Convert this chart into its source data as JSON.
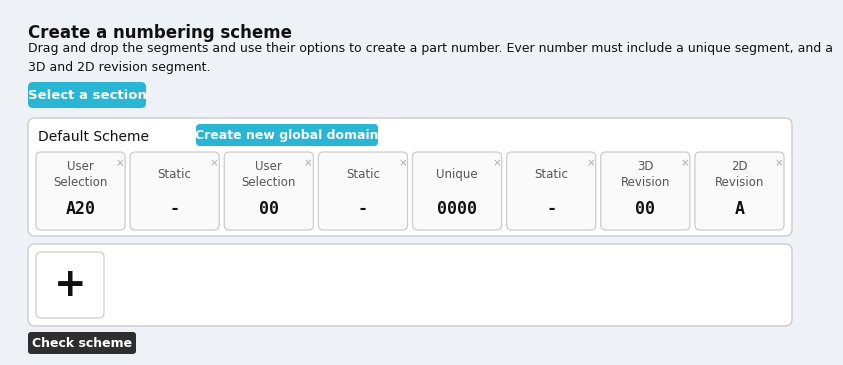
{
  "title": "Create a numbering scheme",
  "subtitle": "Drag and drop the segments and use their options to create a part number. Ever number must include a unique segment, and a\n3D and 2D revision segment.",
  "select_btn_text": "Select a section",
  "select_btn_color": "#29b6d5",
  "default_scheme_label": "Default Scheme",
  "create_btn_text": "Create new global domain",
  "create_btn_color": "#29b6d5",
  "check_btn_text": "Check scheme",
  "check_btn_color": "#2e2e2e",
  "segments": [
    {
      "label": "User\nSelection",
      "value": "A20"
    },
    {
      "label": "Static",
      "value": "-"
    },
    {
      "label": "User\nSelection",
      "value": "00"
    },
    {
      "label": "Static",
      "value": "-"
    },
    {
      "label": "Unique",
      "value": "0000"
    },
    {
      "label": "Static",
      "value": "-"
    },
    {
      "label": "3D\nRevision",
      "value": "00"
    },
    {
      "label": "2D\nRevision",
      "value": "A"
    }
  ],
  "bg_color": "#eef2f7",
  "panel_bg": "#ffffff",
  "border_color": "#cccccc",
  "text_color": "#111111",
  "close_x_color": "#aaaaaa",
  "segment_border": "#cccccc",
  "segment_value_size": 12,
  "segment_label_size": 8.5,
  "title_fontsize": 12,
  "subtitle_fontsize": 9
}
